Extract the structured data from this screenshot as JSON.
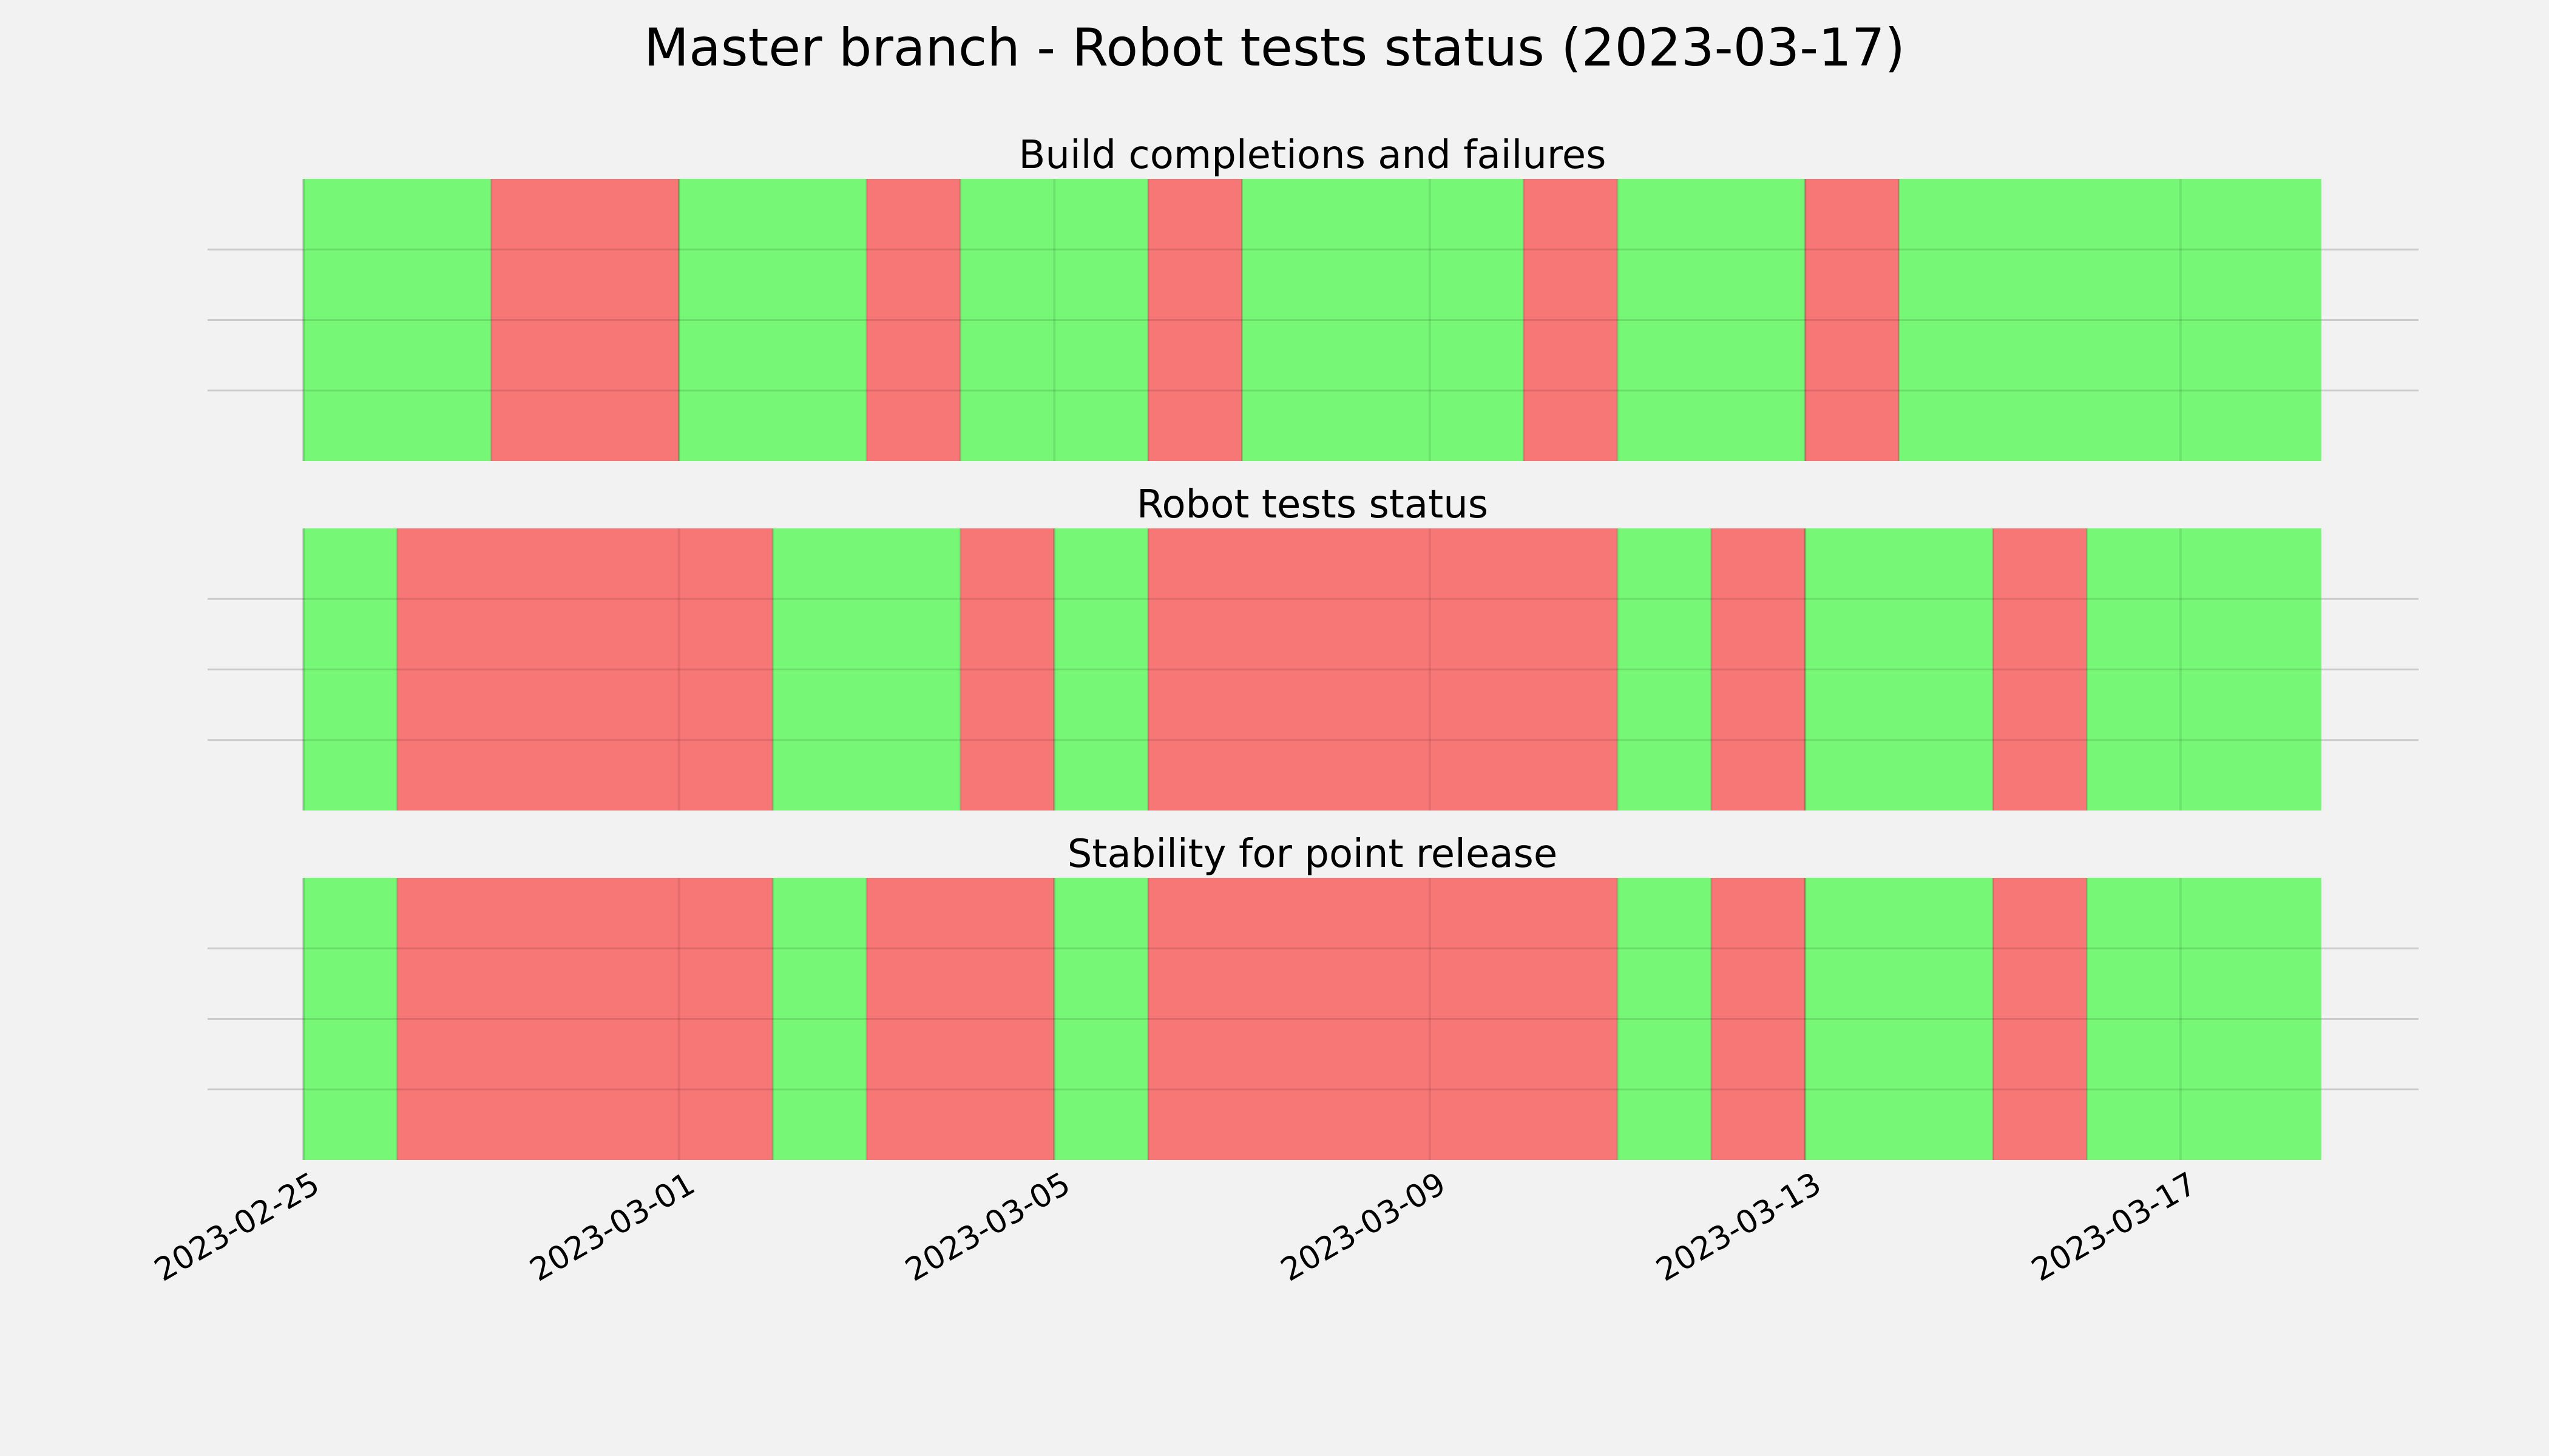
{
  "chart_data": {
    "type": "timeline",
    "title": "Master branch - Robot tests status (2023-03-17)",
    "x_ticks": [
      "2023-02-25",
      "2023-03-01",
      "2023-03-05",
      "2023-03-09",
      "2023-03-13",
      "2023-03-17"
    ],
    "x_range": [
      "2023-02-25",
      "2023-03-18"
    ],
    "grid": true,
    "colors": {
      "ok": "#76f776",
      "fail": "#f77676"
    },
    "panels": [
      {
        "name": "Build completions and failures",
        "title": "Build completions and failures",
        "segments": [
          {
            "start": "2023-02-25T00:00",
            "end": "2023-02-27T00:00",
            "status": "ok"
          },
          {
            "start": "2023-02-27T00:00",
            "end": "2023-03-01T00:00",
            "status": "fail"
          },
          {
            "start": "2023-03-01T00:00",
            "end": "2023-03-03T00:00",
            "status": "ok"
          },
          {
            "start": "2023-03-03T00:00",
            "end": "2023-03-04T00:00",
            "status": "fail"
          },
          {
            "start": "2023-03-04T00:00",
            "end": "2023-03-06T00:00",
            "status": "ok"
          },
          {
            "start": "2023-03-06T00:00",
            "end": "2023-03-07T00:00",
            "status": "fail"
          },
          {
            "start": "2023-03-07T00:00",
            "end": "2023-03-10T00:00",
            "status": "ok"
          },
          {
            "start": "2023-03-10T00:00",
            "end": "2023-03-11T00:00",
            "status": "fail"
          },
          {
            "start": "2023-03-11T00:00",
            "end": "2023-03-13T00:00",
            "status": "ok"
          },
          {
            "start": "2023-03-13T00:00",
            "end": "2023-03-14T00:00",
            "status": "fail"
          },
          {
            "start": "2023-03-14T00:00",
            "end": "2023-03-18T12:00",
            "status": "ok"
          }
        ]
      },
      {
        "name": "Robot tests status",
        "title": "Robot tests status",
        "segments": [
          {
            "start": "2023-02-25T00:00",
            "end": "2023-02-26T00:00",
            "status": "ok"
          },
          {
            "start": "2023-02-26T00:00",
            "end": "2023-03-02T00:00",
            "status": "fail"
          },
          {
            "start": "2023-03-02T00:00",
            "end": "2023-03-04T00:00",
            "status": "ok"
          },
          {
            "start": "2023-03-04T00:00",
            "end": "2023-03-05T00:00",
            "status": "fail"
          },
          {
            "start": "2023-03-05T00:00",
            "end": "2023-03-06T00:00",
            "status": "ok"
          },
          {
            "start": "2023-03-06T00:00",
            "end": "2023-03-11T00:00",
            "status": "fail"
          },
          {
            "start": "2023-03-11T00:00",
            "end": "2023-03-12T00:00",
            "status": "ok"
          },
          {
            "start": "2023-03-12T00:00",
            "end": "2023-03-13T00:00",
            "status": "fail"
          },
          {
            "start": "2023-03-13T00:00",
            "end": "2023-03-15T00:00",
            "status": "ok"
          },
          {
            "start": "2023-03-15T00:00",
            "end": "2023-03-16T00:00",
            "status": "fail"
          },
          {
            "start": "2023-03-16T00:00",
            "end": "2023-03-18T12:00",
            "status": "ok"
          }
        ]
      },
      {
        "name": "Stability for point release",
        "title": "Stability for point release",
        "segments": [
          {
            "start": "2023-02-25T00:00",
            "end": "2023-02-26T00:00",
            "status": "ok"
          },
          {
            "start": "2023-02-26T00:00",
            "end": "2023-03-02T00:00",
            "status": "fail"
          },
          {
            "start": "2023-03-02T00:00",
            "end": "2023-03-03T00:00",
            "status": "ok"
          },
          {
            "start": "2023-03-03T00:00",
            "end": "2023-03-05T00:00",
            "status": "fail"
          },
          {
            "start": "2023-03-05T00:00",
            "end": "2023-03-06T00:00",
            "status": "ok"
          },
          {
            "start": "2023-03-06T00:00",
            "end": "2023-03-11T00:00",
            "status": "fail"
          },
          {
            "start": "2023-03-11T00:00",
            "end": "2023-03-12T00:00",
            "status": "ok"
          },
          {
            "start": "2023-03-12T00:00",
            "end": "2023-03-13T00:00",
            "status": "fail"
          },
          {
            "start": "2023-03-13T00:00",
            "end": "2023-03-15T00:00",
            "status": "ok"
          },
          {
            "start": "2023-03-15T00:00",
            "end": "2023-03-16T00:00",
            "status": "fail"
          },
          {
            "start": "2023-03-16T00:00",
            "end": "2023-03-18T12:00",
            "status": "ok"
          }
        ]
      }
    ]
  }
}
